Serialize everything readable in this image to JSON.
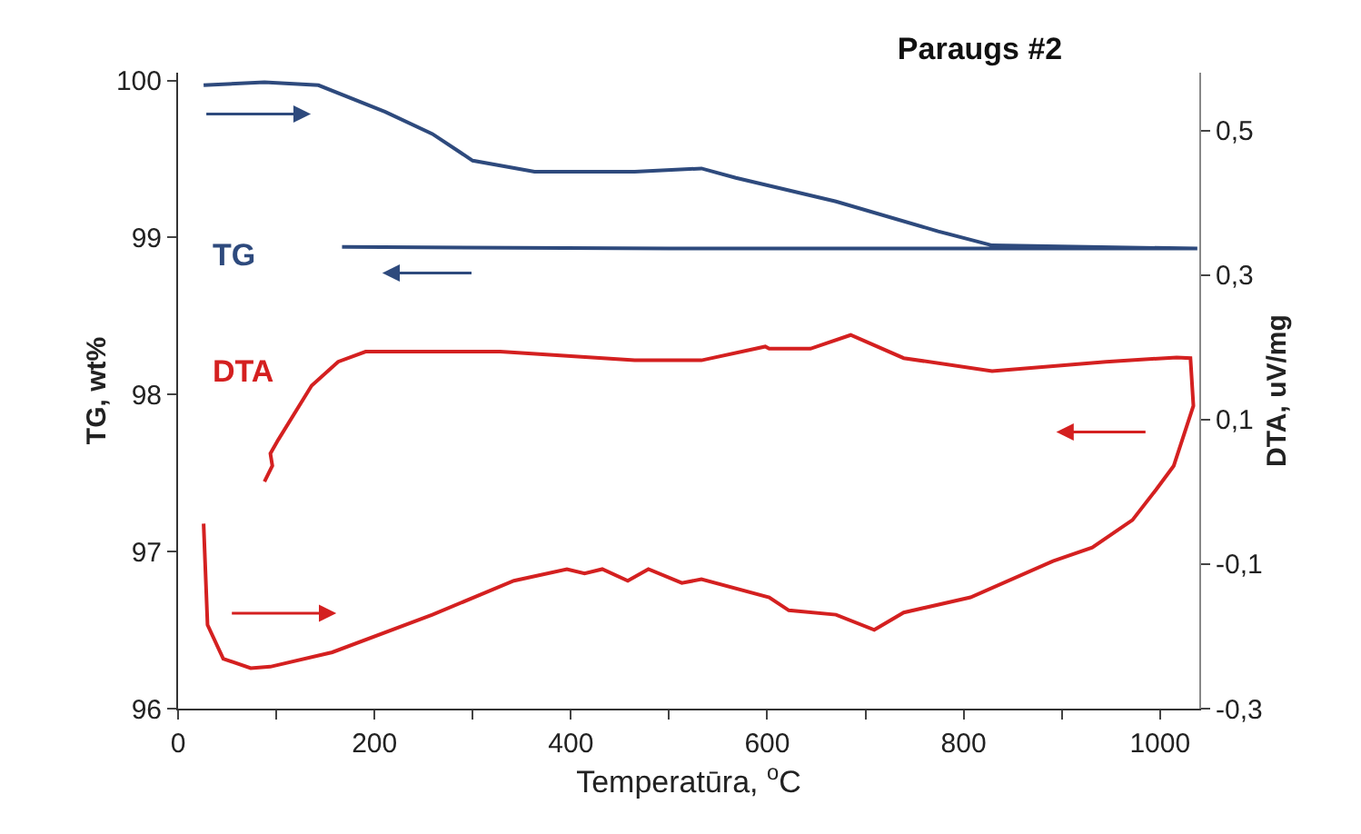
{
  "chart_data": {
    "type": "line",
    "title": "Paraugs #2",
    "xlabel": "Temperatūra, $^{o}$C",
    "ylabel": "TG, wt%",
    "y2label": "DTA, uV/mg",
    "xlim": [
      0,
      1040
    ],
    "xticks": [
      0,
      {
        "value": 100,
        "label": null
      },
      200,
      {
        "value": 300,
        "label": null
      },
      400,
      {
        "value": 500,
        "label": null
      },
      600,
      {
        "value": 700,
        "label": null
      },
      800,
      {
        "value": 900,
        "label": null
      },
      1000
    ],
    "ylim": [
      96,
      100.05
    ],
    "yticks": [
      96,
      97,
      98,
      99,
      100
    ],
    "y2lim": [
      -0.3,
      0.58
    ],
    "y2ticks": [
      {
        "value": -0.3,
        "label": "-0,3"
      },
      {
        "value": -0.1,
        "label": "-0,1"
      },
      {
        "value": 0.1,
        "label": "0,1"
      },
      {
        "value": 0.3,
        "label": "0,3"
      },
      {
        "value": 0.5,
        "label": "0,5"
      }
    ],
    "grid": false,
    "legend": false,
    "marker": "none",
    "line_style": "solid",
    "series": [
      {
        "name": "TG",
        "color": "#2e4a7d",
        "x": [
          26,
          88,
          143,
          211,
          259,
          300,
          363,
          465,
          533,
          568,
          670,
          774,
          829,
          1038,
          800,
          500,
          167
        ],
        "values": [
          99.97,
          99.99,
          99.97,
          99.8,
          99.66,
          99.49,
          99.42,
          99.42,
          99.44,
          99.38,
          99.23,
          99.04,
          98.95,
          98.93,
          98.93,
          98.93,
          98.94
        ]
      },
      {
        "name": "DTA",
        "color": "#d42020",
        "axis": "y2",
        "x": [
          26,
          30,
          46,
          74,
          94,
          157,
          259,
          342,
          396,
          414,
          432,
          458,
          479,
          513,
          533,
          602,
          622,
          670,
          709,
          739,
          807,
          891,
          931,
          972,
          996,
          1014,
          1034,
          1031,
          1017,
          945,
          829,
          739,
          685,
          644,
          602,
          598,
          533,
          465,
          328,
          191,
          163,
          136,
          102,
          94,
          96,
          88
        ],
        "values": [
          -0.044,
          -0.184,
          -0.231,
          -0.244,
          -0.242,
          -0.222,
          -0.17,
          -0.123,
          -0.107,
          -0.113,
          -0.107,
          -0.123,
          -0.107,
          -0.126,
          -0.121,
          -0.146,
          -0.164,
          -0.17,
          -0.191,
          -0.167,
          -0.146,
          -0.096,
          -0.077,
          -0.039,
          0.003,
          0.036,
          0.119,
          0.185,
          0.186,
          0.18,
          0.167,
          0.185,
          0.217,
          0.198,
          0.198,
          0.201,
          0.182,
          0.182,
          0.194,
          0.194,
          0.18,
          0.147,
          0.072,
          0.053,
          0.036,
          0.014
        ]
      }
    ]
  }
}
